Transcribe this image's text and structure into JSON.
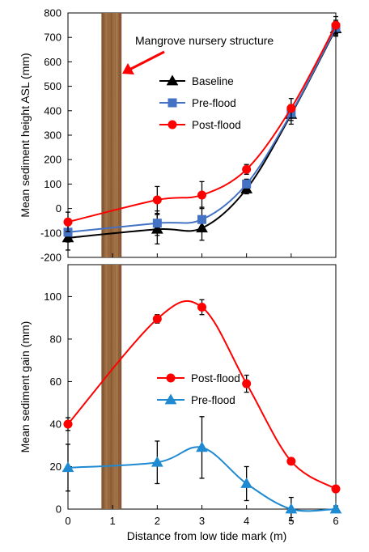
{
  "chart_data": [
    {
      "type": "line",
      "ylabel": "Mean sediment height ASL (mm)",
      "xlim": [
        0,
        6
      ],
      "ylim": [
        -200,
        800
      ],
      "yticks": [
        -200,
        -100,
        0,
        100,
        200,
        300,
        400,
        500,
        600,
        700,
        800
      ],
      "xticks": [
        0,
        1,
        2,
        3,
        4,
        5,
        6
      ],
      "grid": false,
      "legend_position": "center-left",
      "annotation": {
        "text": "Mangrove nursery structure",
        "band_x": [
          0.75,
          1.2
        ],
        "band_color": "#9b6a3f"
      },
      "series": [
        {
          "name": "Baseline",
          "color": "#000000",
          "marker": "triangle",
          "x": [
            0,
            2,
            3,
            4,
            5,
            6
          ],
          "values": [
            -120,
            -85,
            -80,
            80,
            385,
            735
          ],
          "err": [
            50,
            60,
            50,
            20,
            40,
            30
          ]
        },
        {
          "name": "Pre-flood",
          "color": "#4472c4",
          "marker": "square",
          "x": [
            0,
            2,
            3,
            4,
            5,
            6
          ],
          "values": [
            -97,
            -60,
            -45,
            100,
            390,
            740
          ],
          "err": [
            40,
            50,
            50,
            20,
            30,
            30
          ]
        },
        {
          "name": "Post-flood",
          "color": "#ff0000",
          "marker": "circle",
          "x": [
            0,
            2,
            3,
            4,
            5,
            6
          ],
          "values": [
            -55,
            35,
            55,
            160,
            410,
            750
          ],
          "err": [
            40,
            55,
            55,
            20,
            40,
            35
          ]
        }
      ]
    },
    {
      "type": "line",
      "ylabel": "Mean sediment gain (mm)",
      "xlabel": "Distance from low tide mark (m)",
      "xlim": [
        0,
        6
      ],
      "ylim": [
        0,
        115
      ],
      "yticks": [
        0,
        20,
        40,
        60,
        80,
        100
      ],
      "xticks": [
        0,
        1,
        2,
        3,
        4,
        5,
        6
      ],
      "grid": false,
      "legend_position": "center",
      "annotation": {
        "band_x": [
          0.75,
          1.2
        ],
        "band_color": "#9b6a3f"
      },
      "series": [
        {
          "name": "Post-flood",
          "color": "#ff0000",
          "marker": "circle",
          "x": [
            0,
            2,
            3,
            4,
            5,
            6
          ],
          "values": [
            40,
            89.5,
            95,
            59,
            22.5,
            9.5
          ],
          "err": [
            3,
            2,
            3.5,
            4,
            0,
            0
          ]
        },
        {
          "name": "Pre-flood",
          "color": "#1f8ad1",
          "marker": "triangle",
          "x": [
            0,
            2,
            3,
            4,
            5,
            6
          ],
          "values": [
            19.5,
            22,
            29,
            12,
            0,
            0
          ],
          "err": [
            11,
            10,
            14.5,
            8,
            5.5,
            1.5
          ]
        }
      ]
    }
  ]
}
